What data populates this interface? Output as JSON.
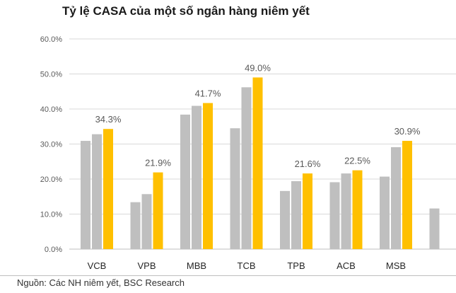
{
  "title": "Tỷ lệ CASA của một số ngân hàng niêm yết",
  "source": "Nguồn: Các NH niêm yết, BSC Research",
  "colors": {
    "bar1": "#bfbfbf",
    "bar2": "#bfbfbf",
    "bar3": "#ffc000",
    "grid": "#d9d9d9",
    "axis": "#bfbfbf"
  },
  "chart_data": {
    "type": "bar",
    "title": "Tỷ lệ CASA của một số ngân hàng niêm yết",
    "ylim": [
      0,
      60
    ],
    "yticks": [
      "0.0%",
      "10.0%",
      "20.0%",
      "30.0%",
      "40.0%",
      "50.0%",
      "60.0%"
    ],
    "grid": true,
    "categories": [
      "VCB",
      "VPB",
      "MBB",
      "TCB",
      "TPB",
      "ACB",
      "MSB",
      ""
    ],
    "series": [
      {
        "values": [
          30.9,
          13.4,
          38.4,
          34.5,
          16.6,
          19.1,
          20.7,
          11.6
        ]
      },
      {
        "values": [
          32.8,
          15.7,
          40.9,
          46.2,
          19.4,
          21.6,
          29.1,
          null
        ]
      },
      {
        "values": [
          34.3,
          21.9,
          41.7,
          49.0,
          21.6,
          22.5,
          30.9,
          null
        ]
      }
    ],
    "data_labels": [
      "34.3%",
      "21.9%",
      "41.7%",
      "49.0%",
      "21.6%",
      "22.5%",
      "30.9%",
      ""
    ]
  }
}
